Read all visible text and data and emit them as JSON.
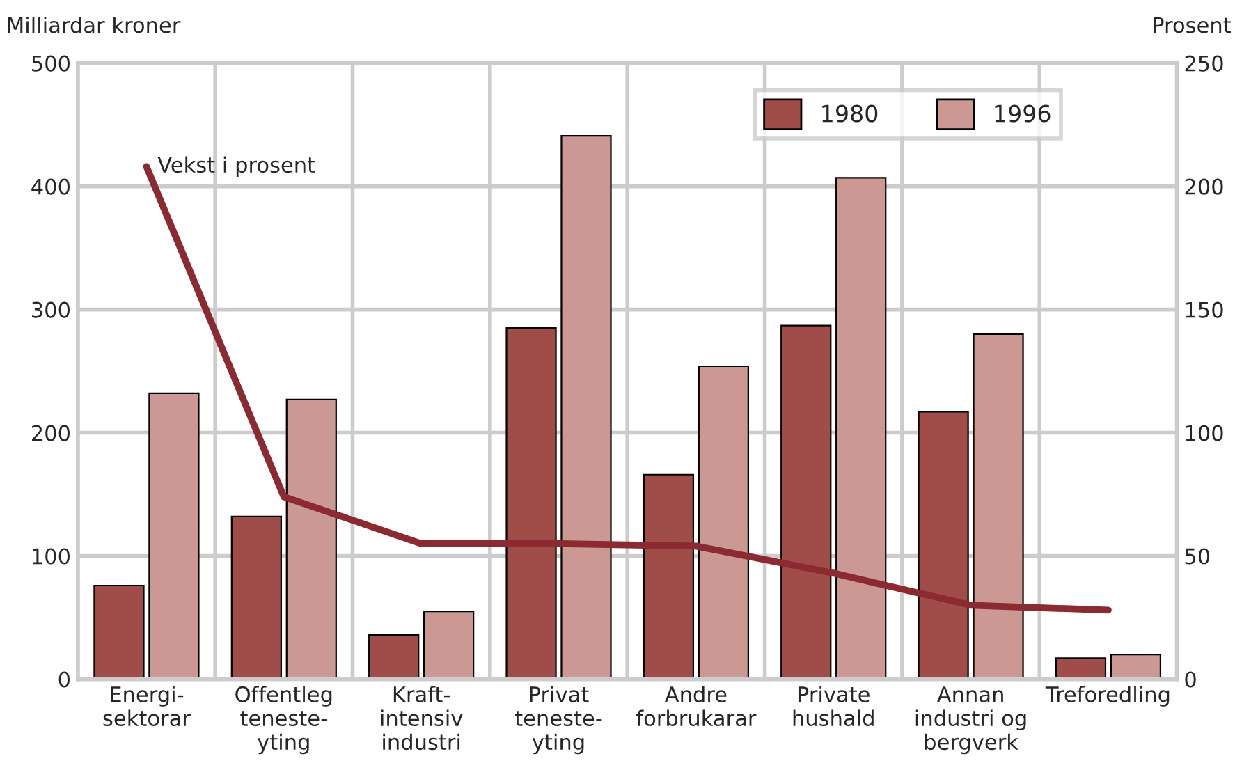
{
  "chart_data": {
    "type": "bar",
    "ylabel": "Milliardar kroner",
    "y2label": "Prosent",
    "categories": [
      "Energi-\nsektorar",
      "Offentleg\nteneste-\nyting",
      "Kraft-\nintensiv\nindustri",
      "Privat\nteneste-\nyting",
      "Andre\nforbrukarar",
      "Private\nhushald",
      "Annan\nindustri og\nbergverk",
      "Treforedling"
    ],
    "series": [
      {
        "name": "1980",
        "color": "#a04c48",
        "values": [
          76,
          132,
          36,
          285,
          166,
          287,
          217,
          17
        ]
      },
      {
        "name": "1996",
        "color": "#cc9893",
        "values": [
          232,
          227,
          55,
          441,
          254,
          407,
          280,
          20
        ]
      },
      {
        "name": "Vekst i prosent",
        "type": "line",
        "axis": "y2",
        "color": "#8b2a30",
        "values": [
          208,
          74,
          55,
          55,
          54,
          43,
          30,
          28
        ]
      }
    ],
    "ylim": [
      0,
      500
    ],
    "yticks": [
      0,
      100,
      200,
      300,
      400,
      500
    ],
    "y2lim": [
      0,
      250
    ],
    "y2ticks": [
      0,
      50,
      100,
      150,
      200,
      250
    ],
    "grid": true,
    "legend": "top right"
  }
}
